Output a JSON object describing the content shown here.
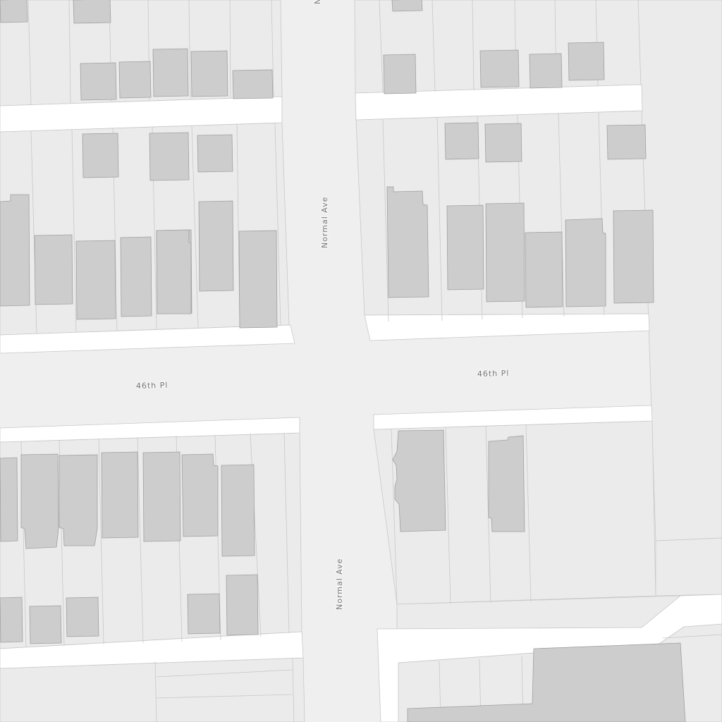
{
  "map": {
    "colors": {
      "road": "#efefef",
      "parcel": "#ebebeb",
      "sidewalk": "#ffffff",
      "building": "#cdcdcd",
      "building_outline": "#a0a0a0",
      "parcel_line": "#c8c8c8",
      "label": "#777777"
    },
    "labels": {
      "street_46th_pl_west": "46th Pl",
      "street_46th_pl_east": "46th Pl",
      "street_normal_ave_north": "Normal Ave",
      "street_normal_ave_south": "Normal Ave",
      "street_normal_ave_top_partial": "N"
    }
  }
}
